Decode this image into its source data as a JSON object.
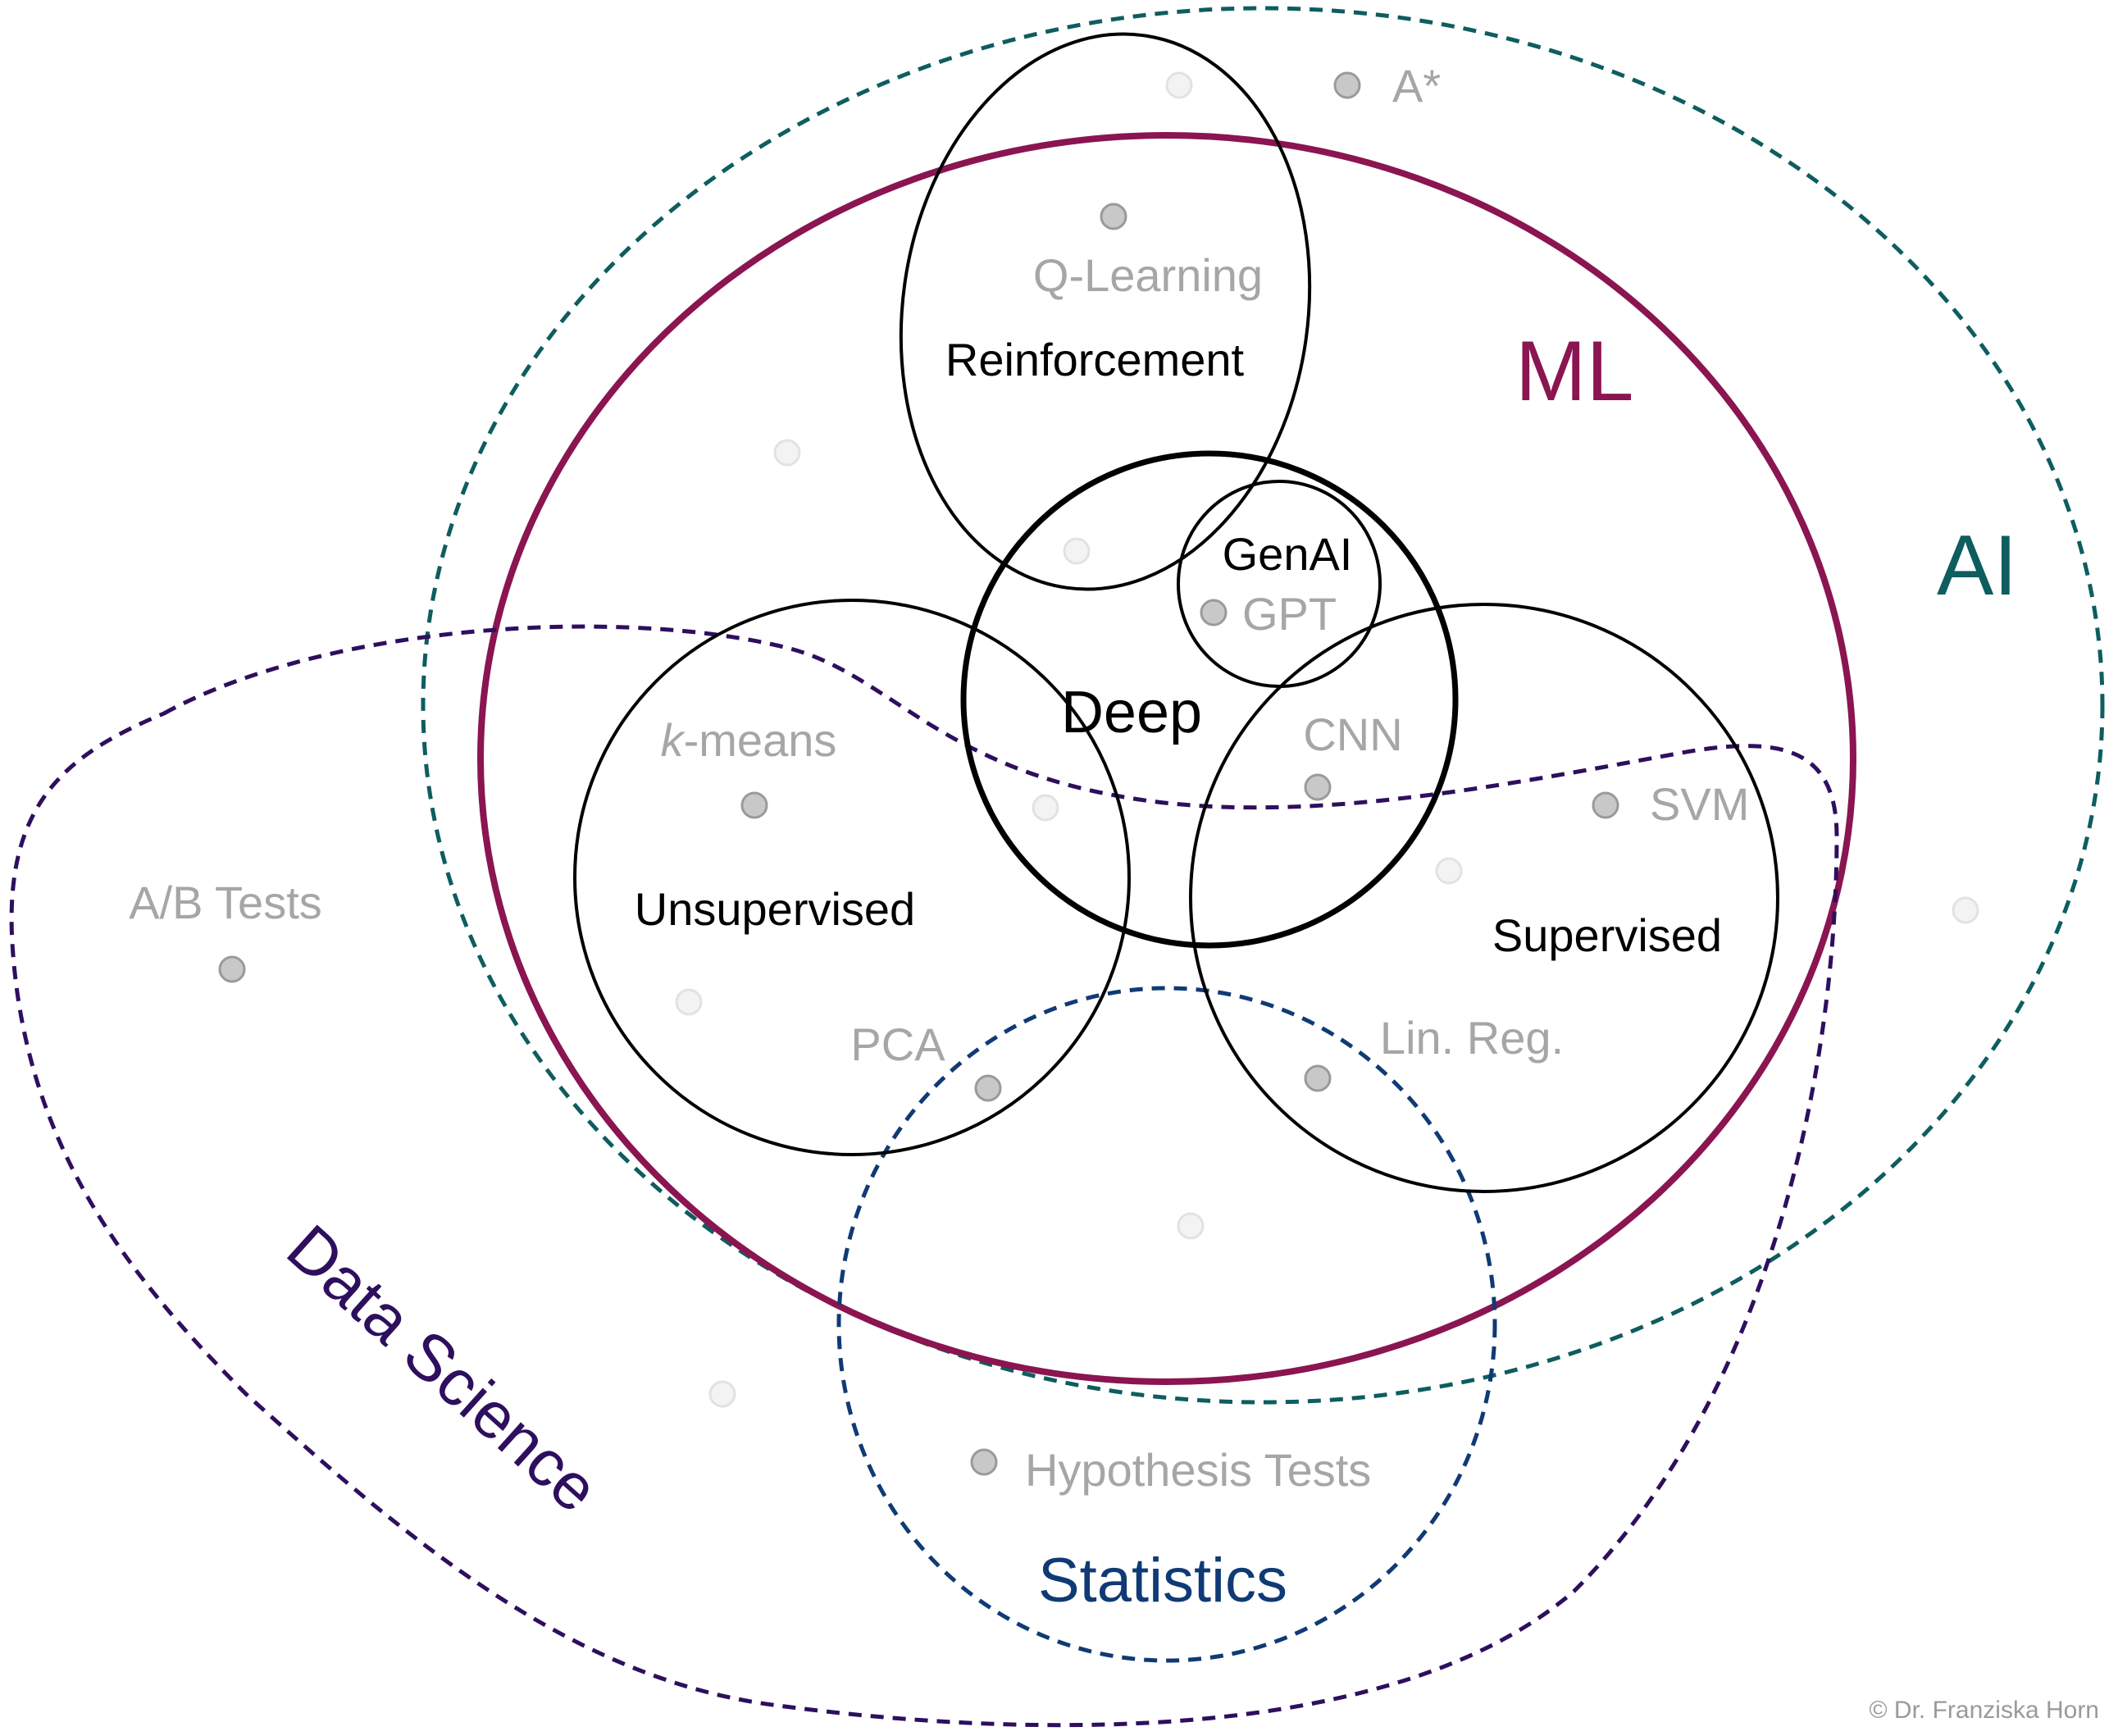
{
  "sets": {
    "ai": {
      "label": "AI",
      "color": "#0e5d5f"
    },
    "ml": {
      "label": "ML",
      "color": "#8a1550"
    },
    "data_science": {
      "label": "Data Science",
      "color": "#2e0f5e"
    },
    "statistics": {
      "label": "Statistics",
      "color": "#103a75"
    },
    "reinforcement": {
      "label": "Reinforcement"
    },
    "deep": {
      "label": "Deep"
    },
    "genai": {
      "label": "GenAI"
    },
    "unsupervised": {
      "label": "Unsupervised"
    },
    "supervised": {
      "label": "Supervised"
    }
  },
  "examples": {
    "a_star": "A*",
    "q_learning": "Q-Learning",
    "gpt": "GPT",
    "cnn": "CNN",
    "k_means_k": "k",
    "k_means_rest": "-means",
    "svm": "SVM",
    "ab_tests": "A/B Tests",
    "pca": "PCA",
    "lin_reg": "Lin. Reg.",
    "hypothesis_tests": "Hypothesis Tests"
  },
  "credit": "© Dr. Franziska Horn"
}
